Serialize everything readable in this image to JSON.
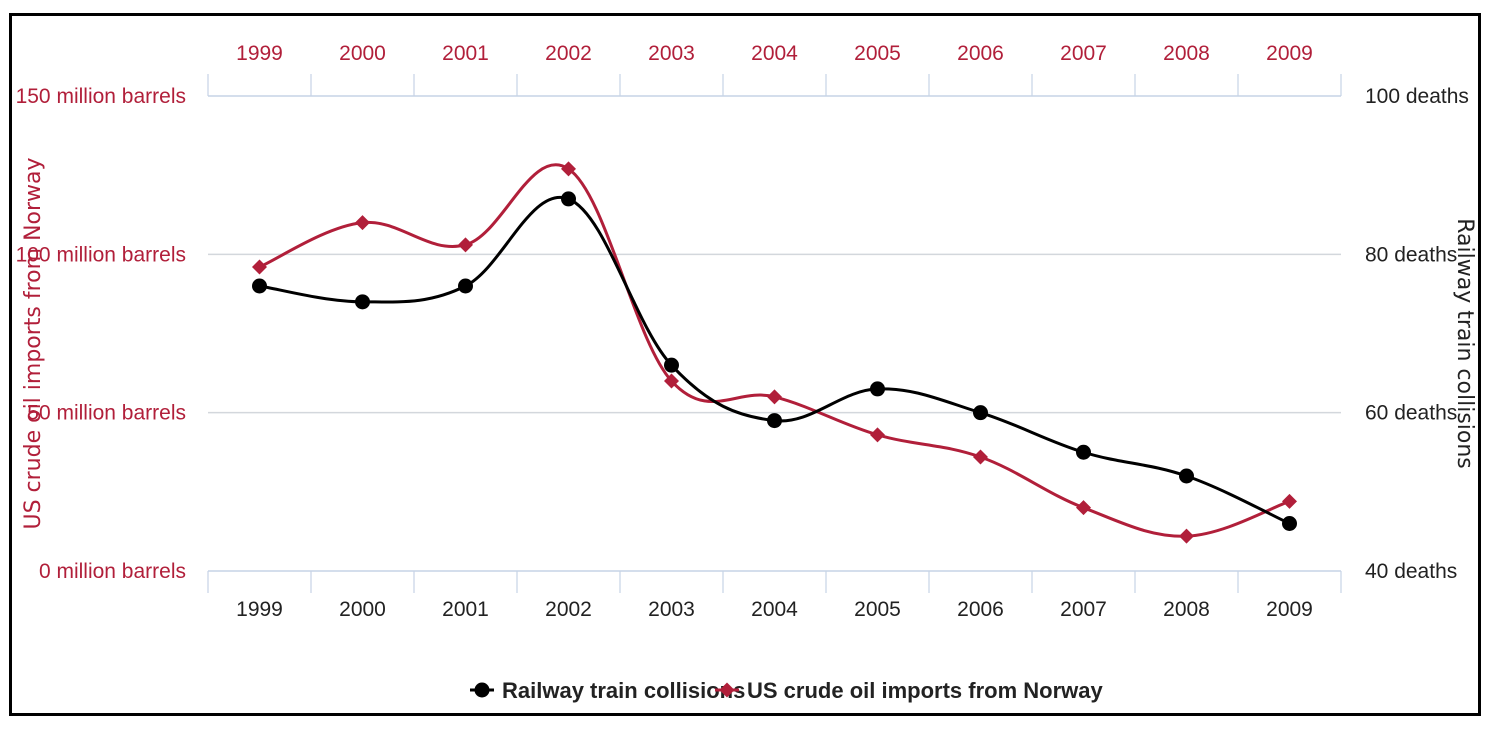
{
  "chart_data": {
    "type": "line",
    "x": [
      "1999",
      "2000",
      "2001",
      "2002",
      "2003",
      "2004",
      "2005",
      "2006",
      "2007",
      "2008",
      "2009"
    ],
    "y_left": {
      "label": "US crude oil imports from Norway",
      "ticks": [
        "0 million barrels",
        "50 million barrels",
        "100 million barrels",
        "150 million barrels"
      ],
      "ylim": [
        0,
        150
      ]
    },
    "y_right": {
      "label": "Railway train collisions",
      "ticks": [
        "40 deaths",
        "60 deaths",
        "80 deaths",
        "100 deaths"
      ],
      "ylim": [
        40,
        100
      ]
    },
    "series": [
      {
        "name": "Railway train collisions",
        "axis": "right",
        "color": "#000000",
        "marker": "circle",
        "values": [
          76,
          74,
          76,
          87,
          66,
          59,
          63,
          60,
          55,
          52,
          46
        ]
      },
      {
        "name": "US crude oil imports from Norway",
        "axis": "left",
        "color": "#b11f3a",
        "marker": "diamond",
        "values": [
          96,
          110,
          103,
          127,
          60,
          55,
          43,
          36,
          20,
          11,
          22
        ]
      }
    ],
    "legend": "bottom-center",
    "grid": true
  },
  "colors": {
    "accent_red": "#b11f3a",
    "black": "#000000",
    "grid": "#d3d7dc",
    "axis": "#c6d3e6"
  }
}
